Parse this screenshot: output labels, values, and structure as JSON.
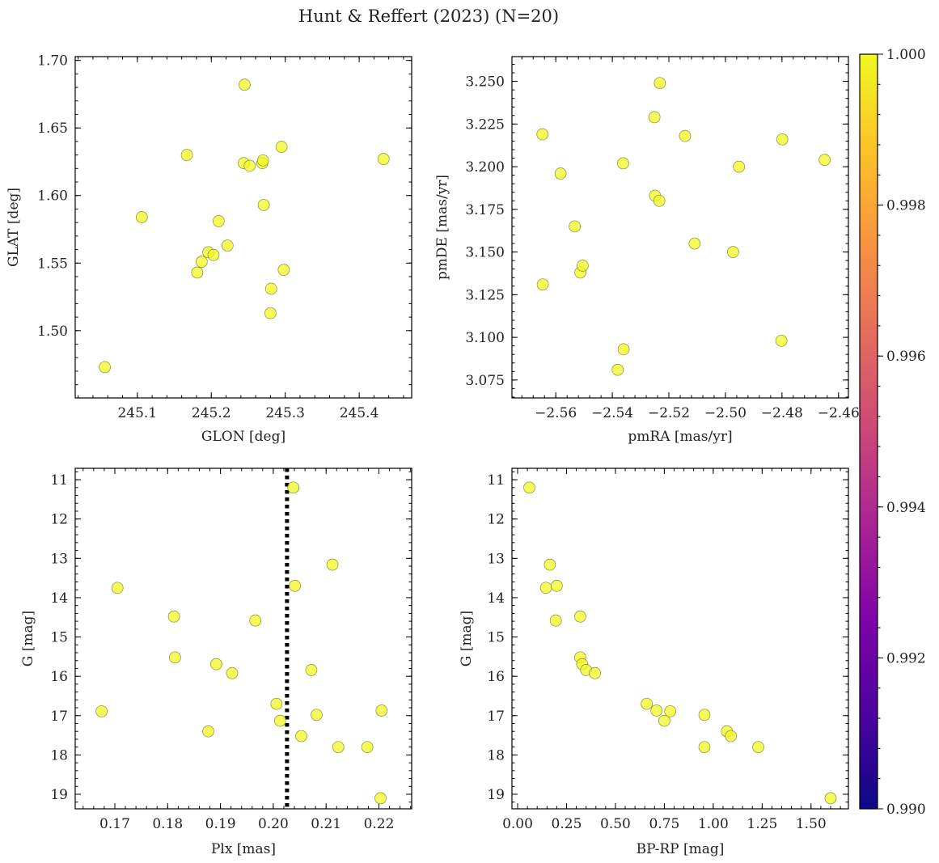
{
  "title": "Hunt & Reffert (2023) (N=20)",
  "chart_data": [
    {
      "type": "scatter",
      "id": "radec",
      "xlabel": "GLON [deg]",
      "ylabel": "GLAT [deg]",
      "xlim": [
        245.016,
        245.471
      ],
      "ylim": [
        1.4502,
        1.7028
      ],
      "y_inverted": false,
      "xticks": [
        245.1,
        245.2,
        245.3,
        245.4
      ],
      "xtick_labels": [
        "245.1",
        "245.2",
        "245.3",
        "245.4"
      ],
      "yticks": [
        1.5,
        1.55,
        1.6,
        1.65,
        1.7
      ],
      "ytick_labels": [
        "1.50",
        "1.55",
        "1.60",
        "1.65",
        "1.70"
      ],
      "x_minor": 0.02,
      "y_minor": 0.01,
      "points": [
        [
          245.056,
          1.473
        ],
        [
          245.106,
          1.584
        ],
        [
          245.167,
          1.63
        ],
        [
          245.181,
          1.543
        ],
        [
          245.187,
          1.551
        ],
        [
          245.196,
          1.558
        ],
        [
          245.203,
          1.556
        ],
        [
          245.21,
          1.581
        ],
        [
          245.222,
          1.563
        ],
        [
          245.244,
          1.624
        ],
        [
          245.245,
          1.682
        ],
        [
          245.252,
          1.622
        ],
        [
          245.269,
          1.624
        ],
        [
          245.27,
          1.626
        ],
        [
          245.271,
          1.593
        ],
        [
          245.28,
          1.513
        ],
        [
          245.281,
          1.531
        ],
        [
          245.295,
          1.636
        ],
        [
          245.298,
          1.545
        ],
        [
          245.433,
          1.627
        ]
      ]
    },
    {
      "type": "scatter",
      "id": "pm",
      "xlabel": "pmRA [mas/yr]",
      "ylabel": "pmDE [mas/yr]",
      "xlim": [
        -2.5755,
        -2.4565
      ],
      "ylim": [
        3.0645,
        3.2645
      ],
      "y_inverted": false,
      "xticks": [
        -2.56,
        -2.54,
        -2.52,
        -2.5,
        -2.48,
        -2.46
      ],
      "xtick_labels": [
        "−2.56",
        "−2.54",
        "−2.52",
        "−2.50",
        "−2.48",
        "−2.46"
      ],
      "yticks": [
        3.075,
        3.1,
        3.125,
        3.15,
        3.175,
        3.2,
        3.225,
        3.25
      ],
      "ytick_labels": [
        "3.075",
        "3.100",
        "3.125",
        "3.150",
        "3.175",
        "3.200",
        "3.225",
        "3.250"
      ],
      "x_minor": 0.004,
      "y_minor": 0.005,
      "points": [
        [
          -2.5647,
          3.219
        ],
        [
          -2.5646,
          3.131
        ],
        [
          -2.5583,
          3.196
        ],
        [
          -2.5533,
          3.165
        ],
        [
          -2.5513,
          3.138
        ],
        [
          -2.5505,
          3.142
        ],
        [
          -2.5381,
          3.081
        ],
        [
          -2.5362,
          3.202
        ],
        [
          -2.536,
          3.093
        ],
        [
          -2.5251,
          3.229
        ],
        [
          -2.5249,
          3.183
        ],
        [
          -2.5234,
          3.18
        ],
        [
          -2.5232,
          3.249
        ],
        [
          -2.5143,
          3.218
        ],
        [
          -2.5109,
          3.155
        ],
        [
          -2.4973,
          3.15
        ],
        [
          -2.4952,
          3.2
        ],
        [
          -2.4802,
          3.098
        ],
        [
          -2.4799,
          3.216
        ],
        [
          -2.4649,
          3.204
        ]
      ]
    },
    {
      "type": "scatter",
      "id": "plx",
      "xlabel": "Plx [mas]",
      "ylabel": "G [mag]",
      "xlim": [
        0.1625,
        0.2262
      ],
      "ylim": [
        10.71,
        19.37
      ],
      "y_inverted": true,
      "vline": 0.2026,
      "xticks": [
        0.17,
        0.18,
        0.19,
        0.2,
        0.21,
        0.22
      ],
      "xtick_labels": [
        "0.17",
        "0.18",
        "0.19",
        "0.20",
        "0.21",
        "0.22"
      ],
      "yticks": [
        11,
        12,
        13,
        14,
        15,
        16,
        17,
        18,
        19
      ],
      "ytick_labels": [
        "11",
        "12",
        "13",
        "14",
        "15",
        "16",
        "17",
        "18",
        "19"
      ],
      "x_minor": 0.002,
      "y_minor": 0.2,
      "points": [
        [
          0.1675,
          16.89
        ],
        [
          0.1705,
          13.75
        ],
        [
          0.1812,
          14.48
        ],
        [
          0.1814,
          15.52
        ],
        [
          0.1877,
          17.4
        ],
        [
          0.1892,
          15.69
        ],
        [
          0.1922,
          15.92
        ],
        [
          0.1966,
          14.58
        ],
        [
          0.2006,
          16.7
        ],
        [
          0.2013,
          17.13
        ],
        [
          0.2038,
          11.2
        ],
        [
          0.2041,
          13.7
        ],
        [
          0.2053,
          17.52
        ],
        [
          0.2072,
          15.84
        ],
        [
          0.2082,
          16.98
        ],
        [
          0.2112,
          13.16
        ],
        [
          0.2123,
          17.8
        ],
        [
          0.2178,
          17.8
        ],
        [
          0.2203,
          19.1
        ],
        [
          0.2205,
          16.87
        ]
      ]
    },
    {
      "type": "scatter",
      "id": "cmd",
      "xlabel": "BP-RP [mag]",
      "ylabel": "G [mag]",
      "xlim": [
        -0.029,
        1.691
      ],
      "ylim": [
        10.71,
        19.37
      ],
      "y_inverted": true,
      "xticks": [
        0,
        0.25,
        0.5,
        0.75,
        1,
        1.25,
        1.5
      ],
      "xtick_labels": [
        "0.00",
        "0.25",
        "0.50",
        "0.75",
        "1.00",
        "1.25",
        "1.50"
      ],
      "yticks": [
        11,
        12,
        13,
        14,
        15,
        16,
        17,
        18,
        19
      ],
      "ytick_labels": [
        "11",
        "12",
        "13",
        "14",
        "15",
        "16",
        "17",
        "18",
        "19"
      ],
      "x_minor": 0.05,
      "y_minor": 0.2,
      "points": [
        [
          0.06,
          11.2
        ],
        [
          0.165,
          13.16
        ],
        [
          0.145,
          13.75
        ],
        [
          0.2,
          13.7
        ],
        [
          0.195,
          14.58
        ],
        [
          0.32,
          14.48
        ],
        [
          0.32,
          15.52
        ],
        [
          0.33,
          15.69
        ],
        [
          0.35,
          15.84
        ],
        [
          0.395,
          15.92
        ],
        [
          0.66,
          16.7
        ],
        [
          0.71,
          16.87
        ],
        [
          0.75,
          17.13
        ],
        [
          0.78,
          16.89
        ],
        [
          0.955,
          16.98
        ],
        [
          0.955,
          17.8
        ],
        [
          1.07,
          17.4
        ],
        [
          1.09,
          17.52
        ],
        [
          1.23,
          17.8
        ],
        [
          1.6,
          19.1
        ]
      ]
    }
  ],
  "colorbar": {
    "cmap": "plasma",
    "vmin": 0.99,
    "vmax": 1.0,
    "ticks": [
      0.99,
      0.992,
      0.994,
      0.996,
      0.998,
      1.0
    ],
    "tick_labels": [
      "0.990",
      "0.992",
      "0.994",
      "0.996",
      "0.998",
      "1.000"
    ],
    "minor": 0.0004
  }
}
